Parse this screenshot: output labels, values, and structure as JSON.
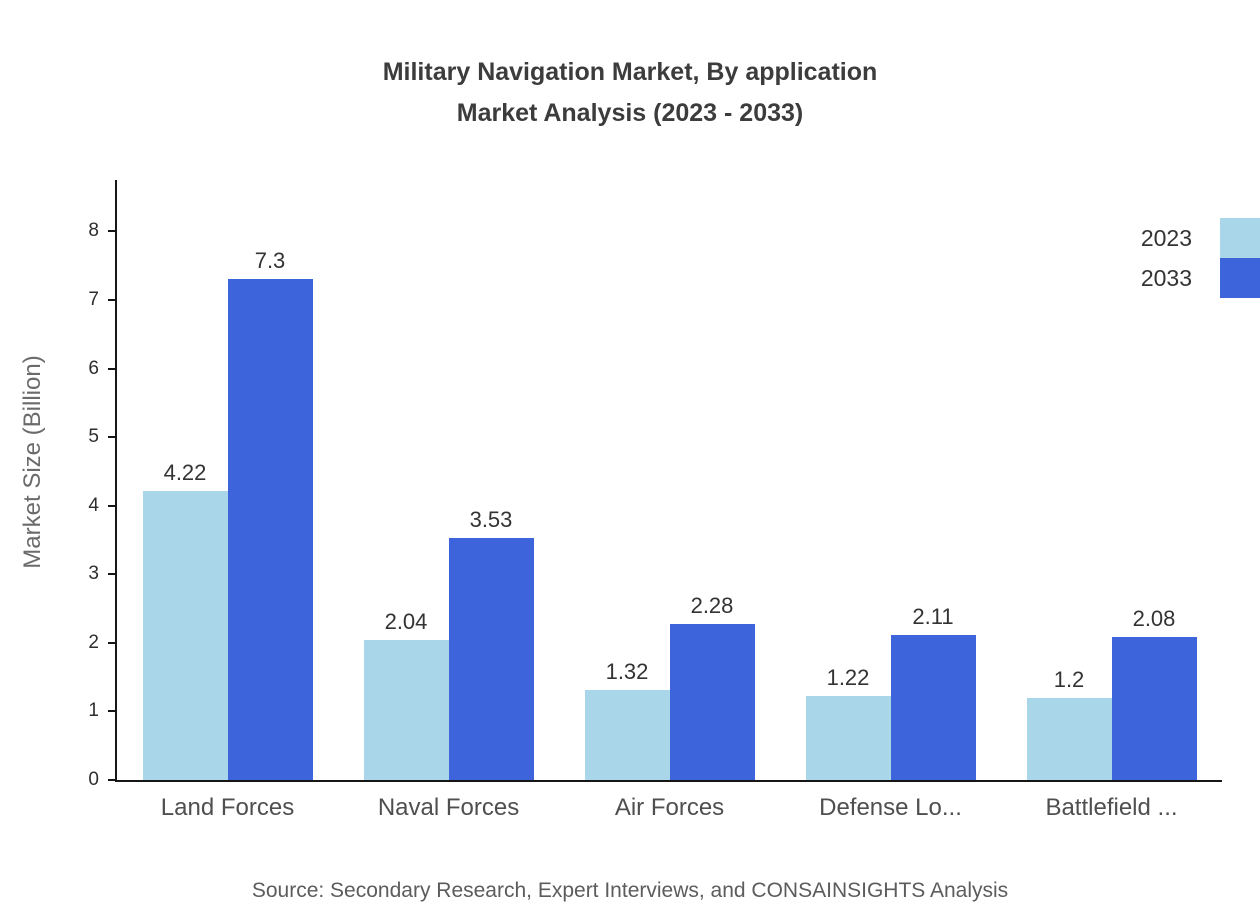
{
  "title": {
    "line1": "Military Navigation Market, By application",
    "line2": "Market Analysis (2023 - 2033)"
  },
  "source_note": "Source: Secondary Research, Expert Interviews, and CONSAINSIGHTS Analysis",
  "colors": {
    "series_2023": "#A9D6E8",
    "series_2033": "#3D64DB",
    "axis": "#161616",
    "title_text": "#3c3c3c",
    "muted_text": "#5c5c5c"
  },
  "chart_data": {
    "type": "bar",
    "title": "Military Navigation Market, By application Market Analysis (2023 - 2033)",
    "categories": [
      "Land Forces",
      "Naval Forces",
      "Air Forces",
      "Defense Lo...",
      "Battlefield ..."
    ],
    "series": [
      {
        "name": "2023",
        "color": "#A9D6E8",
        "values": [
          4.22,
          2.04,
          1.32,
          1.22,
          1.2
        ]
      },
      {
        "name": "2033",
        "color": "#3D64DB",
        "values": [
          7.3,
          3.53,
          2.28,
          2.11,
          2.08
        ]
      }
    ],
    "xlabel": "",
    "ylabel": "Market Size (Billion)",
    "ylim": [
      0,
      8.75
    ],
    "yticks": [
      0,
      1,
      2,
      3,
      4,
      5,
      6,
      7,
      8
    ],
    "legend_position": "top-right",
    "grid": false,
    "value_labels": true
  }
}
